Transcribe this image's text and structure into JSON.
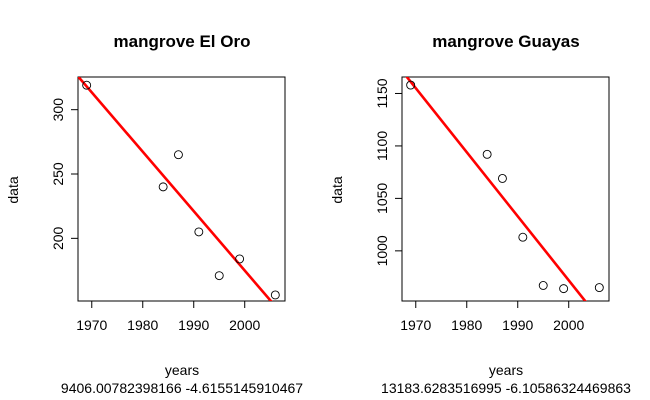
{
  "chart_data": [
    {
      "type": "scatter",
      "title": "mangrove El Oro",
      "xlabel": "years",
      "ylabel": "data",
      "subtitle": "9406.00782398166 -4.6155145910467",
      "xlim": [
        1967.3,
        2007.9
      ],
      "ylim": [
        151.3,
        325.4
      ],
      "xticks": [
        "1970",
        "1980",
        "1990",
        "2000"
      ],
      "yticks": [
        "200",
        "250",
        "300"
      ],
      "points": [
        {
          "x": 1969,
          "y": 319
        },
        {
          "x": 1984,
          "y": 240
        },
        {
          "x": 1987,
          "y": 265
        },
        {
          "x": 1991,
          "y": 205
        },
        {
          "x": 1995,
          "y": 171
        },
        {
          "x": 1999,
          "y": 184
        },
        {
          "x": 2006,
          "y": 156
        }
      ],
      "fit": {
        "intercept": 9406.00782398166,
        "slope": -4.6155145910467,
        "color": "#ff0000"
      }
    },
    {
      "type": "scatter",
      "title": "mangrove Guayas",
      "xlabel": "years",
      "ylabel": "data",
      "subtitle": "13183.6283516995 -6.10586324469863",
      "xlim": [
        1967.3,
        2007.9
      ],
      "ylim": [
        952.2,
        1165.7
      ],
      "xticks": [
        "1970",
        "1980",
        "1990",
        "2000"
      ],
      "yticks": [
        "1000",
        "1050",
        "1100",
        "1150"
      ],
      "points": [
        {
          "x": 1969,
          "y": 1158
        },
        {
          "x": 1984,
          "y": 1092
        },
        {
          "x": 1987,
          "y": 1069
        },
        {
          "x": 1991,
          "y": 1013
        },
        {
          "x": 1995,
          "y": 967
        },
        {
          "x": 1999,
          "y": 964
        },
        {
          "x": 2006,
          "y": 965
        }
      ],
      "fit": {
        "intercept": 13183.6283516995,
        "slope": -6.10586324469863,
        "color": "#ff0000"
      }
    }
  ]
}
